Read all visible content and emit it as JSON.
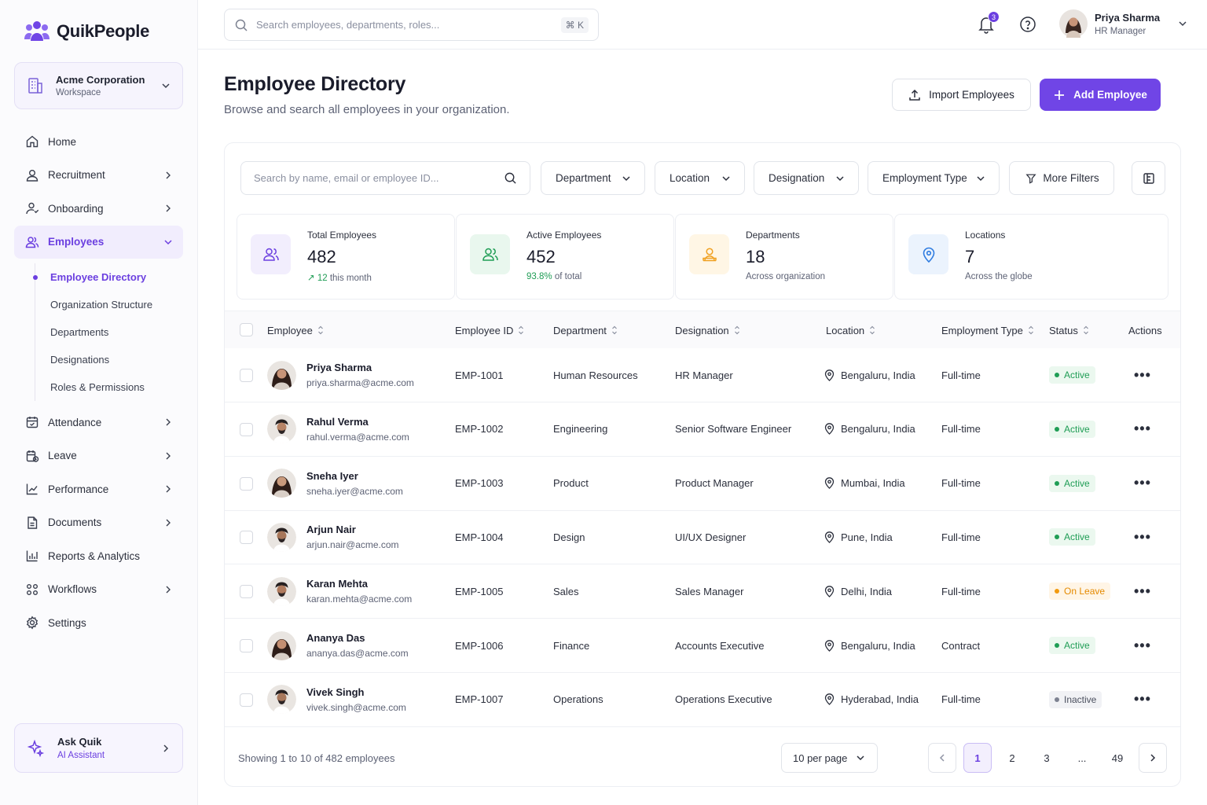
{
  "app": {
    "name": "QuikPeople"
  },
  "workspace": {
    "name": "Acme Corporation",
    "label": "Workspace"
  },
  "nav": {
    "items": [
      {
        "label": "Home",
        "icon": "home-icon"
      },
      {
        "label": "Recruitment",
        "icon": "user-icon"
      },
      {
        "label": "Onboarding",
        "icon": "onboarding-icon"
      },
      {
        "label": "Employees",
        "icon": "users-icon"
      },
      {
        "label": "Attendance",
        "icon": "calendar-icon"
      },
      {
        "label": "Leave",
        "icon": "leave-icon"
      },
      {
        "label": "Performance",
        "icon": "chart-line-icon"
      },
      {
        "label": "Documents",
        "icon": "document-icon"
      },
      {
        "label": "Reports & Analytics",
        "icon": "bar-chart-icon"
      },
      {
        "label": "Workflows",
        "icon": "workflow-icon"
      },
      {
        "label": "Settings",
        "icon": "gear-icon"
      }
    ],
    "sub": [
      "Employee Directory",
      "Organization Structure",
      "Departments",
      "Designations",
      "Roles & Permissions"
    ]
  },
  "assistant": {
    "title": "Ask Quik",
    "subtitle": "AI Assistant"
  },
  "topbar": {
    "search_placeholder": "Search employees, departments, roles...",
    "shortcut": "⌘ K",
    "notifications": "3",
    "user": {
      "name": "Priya Sharma",
      "role": "HR Manager"
    }
  },
  "page": {
    "title": "Employee Directory",
    "subtitle": "Browse and search all employees in your organization.",
    "import_label": "Import Employees",
    "add_label": "Add Employee"
  },
  "filters": {
    "search_placeholder": "Search by name, email or employee ID...",
    "department": "Department",
    "location": "Location",
    "designation": "Designation",
    "employment_type": "Employment Type",
    "more": "More Filters"
  },
  "stats": [
    {
      "label": "Total Employees",
      "value": "482",
      "note_prefix": "↗ 12",
      "note": "this month",
      "color": "#6b3fe0"
    },
    {
      "label": "Active Employees",
      "value": "452",
      "note_prefix": "93.8%",
      "note": "of total",
      "color": "#1f9d55"
    },
    {
      "label": "Departments",
      "value": "18",
      "note_prefix": "",
      "note": "Across organization",
      "color": "#f0a020"
    },
    {
      "label": "Locations",
      "value": "7",
      "note_prefix": "",
      "note": "Across the globe",
      "color": "#2d7be0"
    }
  ],
  "table": {
    "headers": [
      "Employee",
      "Employee ID",
      "Department",
      "Designation",
      "Location",
      "Employment Type",
      "Status",
      "Actions"
    ],
    "rows": [
      {
        "name": "Priya Sharma",
        "email": "priya.sharma@acme.com",
        "id": "EMP-1001",
        "dept": "Human Resources",
        "designation": "HR Manager",
        "location": "Bengaluru, India",
        "type": "Full-time",
        "status": "Active"
      },
      {
        "name": "Rahul Verma",
        "email": "rahul.verma@acme.com",
        "id": "EMP-1002",
        "dept": "Engineering",
        "designation": "Senior Software Engineer",
        "location": "Bengaluru, India",
        "type": "Full-time",
        "status": "Active"
      },
      {
        "name": "Sneha Iyer",
        "email": "sneha.iyer@acme.com",
        "id": "EMP-1003",
        "dept": "Product",
        "designation": "Product Manager",
        "location": "Mumbai, India",
        "type": "Full-time",
        "status": "Active"
      },
      {
        "name": "Arjun Nair",
        "email": "arjun.nair@acme.com",
        "id": "EMP-1004",
        "dept": "Design",
        "designation": "UI/UX Designer",
        "location": "Pune, India",
        "type": "Full-time",
        "status": "Active"
      },
      {
        "name": "Karan Mehta",
        "email": "karan.mehta@acme.com",
        "id": "EMP-1005",
        "dept": "Sales",
        "designation": "Sales Manager",
        "location": "Delhi, India",
        "type": "Full-time",
        "status": "On Leave"
      },
      {
        "name": "Ananya Das",
        "email": "ananya.das@acme.com",
        "id": "EMP-1006",
        "dept": "Finance",
        "designation": "Accounts Executive",
        "location": "Bengaluru, India",
        "type": "Contract",
        "status": "Active"
      },
      {
        "name": "Vivek Singh",
        "email": "vivek.singh@acme.com",
        "id": "EMP-1007",
        "dept": "Operations",
        "designation": "Operations Executive",
        "location": "Hyderabad, India",
        "type": "Full-time",
        "status": "Inactive"
      }
    ]
  },
  "pagination": {
    "summary": "Showing 1 to 10 of 482 employees",
    "per_page": "10 per page",
    "pages": [
      "1",
      "2",
      "3",
      "...",
      "49"
    ]
  }
}
